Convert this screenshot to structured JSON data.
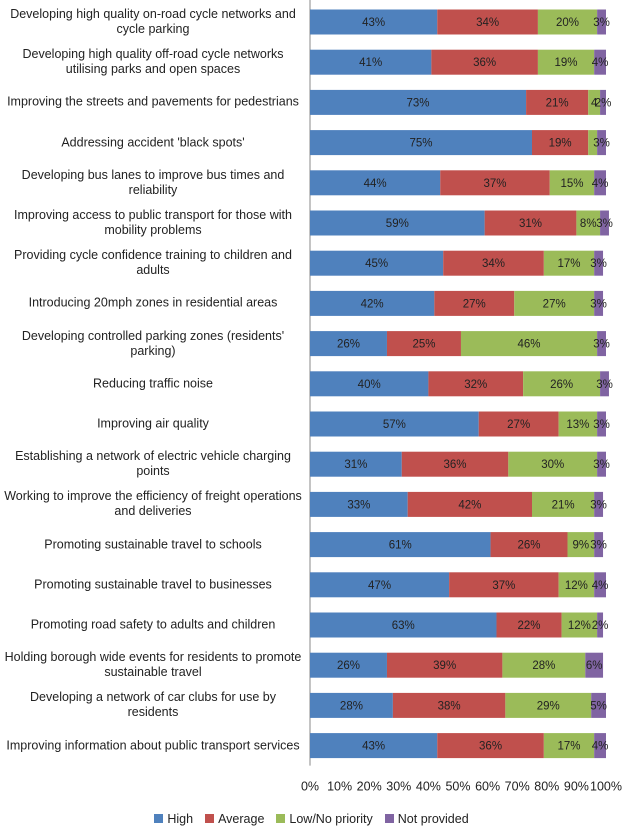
{
  "chart_data": {
    "type": "stacked-bar-horizontal",
    "categories": [
      "Developing high quality on-road cycle networks and cycle parking",
      "Developing high quality off-road cycle networks utilising parks and open spaces",
      "Improving the streets and pavements for pedestrians",
      "Addressing accident 'black spots'",
      "Developing bus lanes to improve bus times and reliability",
      "Improving access to public transport for those with mobility problems",
      "Providing cycle confidence training to children and adults",
      "Introducing 20mph zones in residential areas",
      "Developing controlled parking zones (residents' parking)",
      "Reducing traffic noise",
      "Improving air quality",
      "Establishing a network of electric vehicle charging points",
      "Working to improve the efficiency of freight operations and deliveries",
      "Promoting sustainable travel to schools",
      "Promoting sustainable travel to businesses",
      "Promoting road safety to adults and children",
      "Holding borough wide events for residents to promote sustainable travel",
      "Developing a network of car clubs for use by residents",
      "Improving information about public transport services"
    ],
    "series": [
      {
        "name": "High",
        "color": "#4f81bd",
        "values": [
          43,
          41,
          73,
          75,
          44,
          59,
          45,
          42,
          26,
          40,
          57,
          31,
          33,
          61,
          47,
          63,
          26,
          28,
          43
        ],
        "value_labels": [
          "43%",
          "41%",
          "73%",
          "75%",
          "44%",
          "59%",
          "45%",
          "42%",
          "26%",
          "40%",
          "57%",
          "31%",
          "33%",
          "61%",
          "47%",
          "63%",
          "26%",
          "28%",
          "43%"
        ]
      },
      {
        "name": "Average",
        "color": "#c0504d",
        "values": [
          34,
          36,
          21,
          19,
          37,
          31,
          34,
          27,
          25,
          32,
          27,
          36,
          42,
          26,
          37,
          22,
          39,
          38,
          36
        ],
        "value_labels": [
          "34%",
          "36%",
          "21%",
          "19%",
          "37%",
          "31%",
          "34%",
          "27%",
          "25%",
          "32%",
          "27%",
          "36%",
          "42%",
          "26%",
          "37%",
          "22%",
          "39%",
          "38%",
          "36%"
        ]
      },
      {
        "name": "Low/No priority",
        "color": "#9bbb59",
        "values": [
          20,
          19,
          4,
          3,
          15,
          8,
          17,
          27,
          46,
          26,
          13,
          30,
          21,
          9,
          12,
          12,
          28,
          29,
          17
        ],
        "value_labels": [
          "20%",
          "19%",
          "4",
          null,
          "15%",
          "8%",
          "17%",
          "27%",
          "46%",
          "26%",
          "13%",
          "30%",
          "21%",
          "9%",
          "12%",
          "12%",
          "28%",
          "29%",
          "17%"
        ]
      },
      {
        "name": "Not provided",
        "color": "#8064a2",
        "values": [
          3,
          4,
          2,
          3,
          4,
          3,
          3,
          3,
          3,
          3,
          3,
          3,
          3,
          3,
          4,
          2,
          6,
          5,
          4
        ],
        "value_labels": [
          "3%",
          "4%",
          "2%",
          "3%",
          "4%",
          "3%",
          "3%",
          "3%",
          "3%",
          "3%",
          "3%",
          "3%",
          "3%",
          "3%",
          "4%",
          "2%",
          "6%",
          "5%",
          "4%"
        ]
      }
    ],
    "xlim": [
      0,
      100
    ],
    "xticks": [
      {
        "value": 0,
        "label": "0%"
      },
      {
        "value": 10,
        "label": "10%"
      },
      {
        "value": 20,
        "label": "20%"
      },
      {
        "value": 30,
        "label": "30%"
      },
      {
        "value": 40,
        "label": "40%"
      },
      {
        "value": 50,
        "label": "50%"
      },
      {
        "value": 60,
        "label": "60%"
      },
      {
        "value": 70,
        "label": "70%"
      },
      {
        "value": 80,
        "label": "80%"
      },
      {
        "value": 90,
        "label": "90%"
      },
      {
        "value": 100,
        "label": "100%"
      }
    ],
    "legend": "bottom"
  }
}
